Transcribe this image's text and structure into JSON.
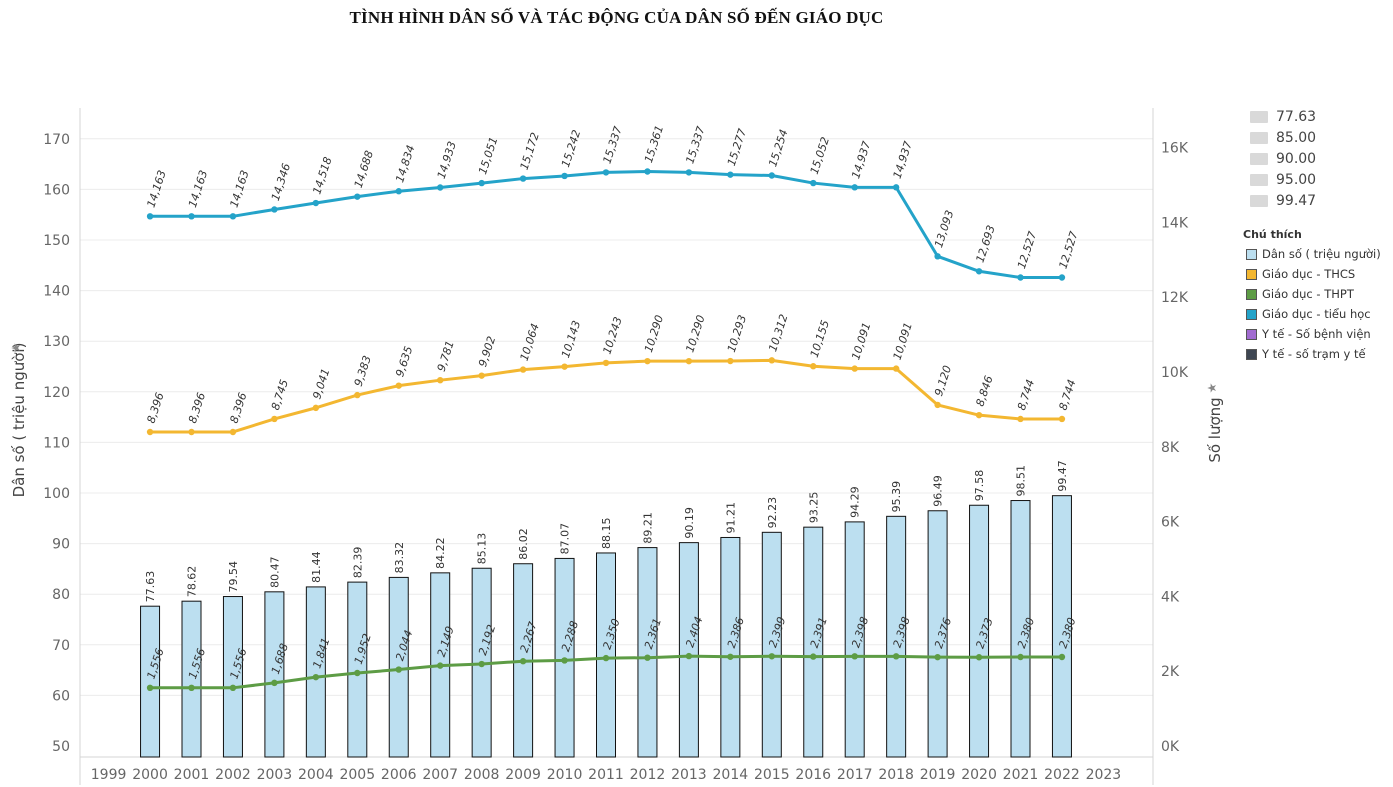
{
  "title": "TÌNH HÌNH DÂN SỐ VÀ TÁC ĐỘNG CỦA DÂN SỐ ĐẾN GIÁO DỤC",
  "chart_data": {
    "type": "bar",
    "x": [
      2000,
      2001,
      2002,
      2003,
      2004,
      2005,
      2006,
      2007,
      2008,
      2009,
      2010,
      2011,
      2012,
      2013,
      2014,
      2015,
      2016,
      2017,
      2018,
      2019,
      2020,
      2021,
      2022
    ],
    "x_ticks": [
      "1999",
      "2000",
      "2001",
      "2002",
      "2003",
      "2004",
      "2005",
      "2006",
      "2007",
      "2008",
      "2009",
      "2010",
      "2011",
      "2012",
      "2013",
      "2014",
      "2015",
      "2016",
      "2017",
      "2018",
      "2019",
      "2020",
      "2021",
      "2022",
      "2023"
    ],
    "ylabel": "Dân số ( triệu người)",
    "y2label": "Số lượng",
    "ylim": [
      50,
      170
    ],
    "yticks": [
      "50",
      "60",
      "70",
      "80",
      "90",
      "100",
      "110",
      "120",
      "130",
      "140",
      "150",
      "160",
      "170"
    ],
    "y2lim": [
      0,
      16000
    ],
    "y2ticks": [
      "0K",
      "2K",
      "4K",
      "6K",
      "8K",
      "10K",
      "12K",
      "14K",
      "16K"
    ],
    "grid": true,
    "legend_position": "right",
    "series": [
      {
        "name": "Dân số ( triệu người)",
        "type": "bar",
        "axis": "left",
        "color": "#bcdff0",
        "values": [
          77.63,
          78.62,
          79.54,
          80.47,
          81.44,
          82.39,
          83.32,
          84.22,
          85.13,
          86.02,
          87.07,
          88.15,
          89.21,
          90.19,
          91.21,
          92.23,
          93.25,
          94.29,
          95.39,
          96.49,
          97.58,
          98.51,
          99.47
        ],
        "labels": [
          "77.63",
          "78.62",
          "79.54",
          "80.47",
          "81.44",
          "82.39",
          "83.32",
          "84.22",
          "85.13",
          "86.02",
          "87.07",
          "88.15",
          "89.21",
          "90.19",
          "91.21",
          "92.23",
          "93.25",
          "94.29",
          "95.39",
          "96.49",
          "97.58",
          "98.51",
          "99.47"
        ]
      },
      {
        "name": "Giáo dục - THCS",
        "type": "line",
        "axis": "right",
        "color": "#f3b731",
        "values": [
          8396,
          8396,
          8396,
          8745,
          9041,
          9383,
          9635,
          9781,
          9902,
          10064,
          10143,
          10243,
          10290,
          10290,
          10293,
          10312,
          10155,
          10091,
          10091,
          9120,
          8846,
          8744,
          8744
        ],
        "labels": [
          "8,396",
          "8,396",
          "8,396",
          "8,745",
          "9,041",
          "9,383",
          "9,635",
          "9,781",
          "9,902",
          "10,064",
          "10,143",
          "10,243",
          "10,290",
          "10,290",
          "10,293",
          "10,312",
          "10,155",
          "10,091",
          "10,091",
          "9,120",
          "8,846",
          "8,744",
          "8,744"
        ]
      },
      {
        "name": "Giáo dục - THPT",
        "type": "line",
        "axis": "right",
        "color": "#5d9c45",
        "values": [
          1556,
          1556,
          1556,
          1688,
          1841,
          1952,
          2044,
          2149,
          2192,
          2267,
          2288,
          2350,
          2361,
          2404,
          2386,
          2399,
          2391,
          2398,
          2398,
          2376,
          2373,
          2380,
          2380
        ],
        "labels": [
          "1,556",
          "1,556",
          "1,556",
          "1,688",
          "1,841",
          "1,952",
          "2,044",
          "2,149",
          "2,192",
          "2,267",
          "2,288",
          "2,350",
          "2,361",
          "2,404",
          "2,386",
          "2,399",
          "2,391",
          "2,398",
          "2,398",
          "2,376",
          "2,373",
          "2,380",
          "2,380"
        ]
      },
      {
        "name": "Giáo dục - tiểu học",
        "type": "line",
        "axis": "right",
        "color": "#24a3c9",
        "values": [
          14163,
          14163,
          14163,
          14346,
          14518,
          14688,
          14834,
          14933,
          15051,
          15172,
          15242,
          15337,
          15361,
          15337,
          15277,
          15254,
          15052,
          14937,
          14937,
          13093,
          12693,
          12527,
          12527
        ],
        "labels": [
          "14,163",
          "14,163",
          "14,163",
          "14,346",
          "14,518",
          "14,688",
          "14,834",
          "14,933",
          "15,051",
          "15,172",
          "15,242",
          "15,337",
          "15,361",
          "15,337",
          "15,277",
          "15,254",
          "15,052",
          "14,937",
          "14,937",
          "13,093",
          "12,693",
          "12,527",
          "12,527"
        ]
      }
    ]
  },
  "size_legend": [
    "77.63",
    "85.00",
    "90.00",
    "95.00",
    "99.47"
  ],
  "legend": {
    "title": "Chú thích",
    "items": [
      {
        "label": "Dân số ( triệu người)",
        "color": "#bcdff0"
      },
      {
        "label": "Giáo dục - THCS",
        "color": "#f3b731"
      },
      {
        "label": "Giáo dục - THPT",
        "color": "#5d9c45"
      },
      {
        "label": "Giáo dục - tiểu học",
        "color": "#24a3c9"
      },
      {
        "label": "Y tế - Số bệnh viện",
        "color": "#a16bd0"
      },
      {
        "label": "Y tế - số trạm y tế",
        "color": "#3e4652"
      }
    ]
  }
}
